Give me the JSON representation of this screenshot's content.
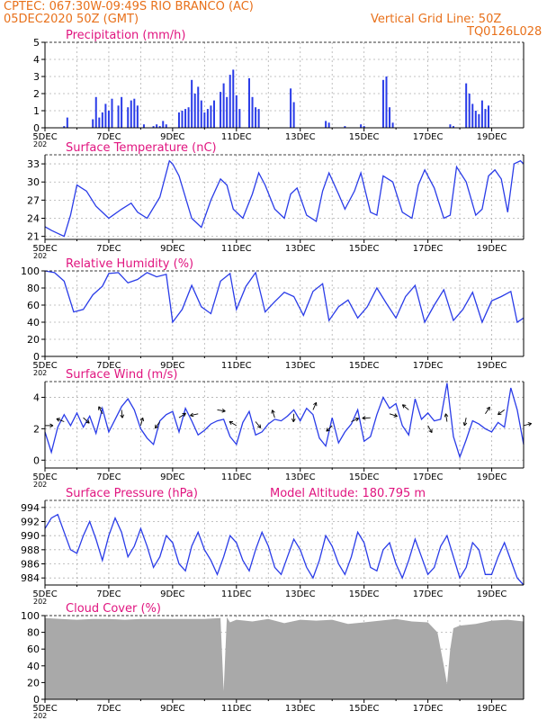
{
  "header": {
    "line1": "CPTEC:   067:30W-09:49S   RIO BRANCO (AC)",
    "line2": "05DEC2020 50Z (GMT)",
    "grid_note": "Vertical Grid Line: 50Z",
    "model_code": "TQ0126L028"
  },
  "x_axis": {
    "tick_labels": [
      "5DEC",
      "7DEC",
      "9DEC",
      "11DEC",
      "13DEC",
      "15DEC",
      "17DEC",
      "19DEC"
    ],
    "year_fragment": "202",
    "range_days": [
      5,
      20
    ]
  },
  "colors": {
    "series": "#2a3ce8",
    "title": "#e0147f",
    "header": "#e8701a",
    "cloud": "#a9a9a9",
    "grid": "#b0b0b0"
  },
  "chart_data": [
    {
      "type": "bar",
      "title": "Precipitation (mm/h)",
      "ylim": [
        0,
        5
      ],
      "yticks": [
        0,
        1,
        2,
        3,
        4,
        5
      ],
      "x": [
        5.6,
        5.7,
        6.5,
        6.6,
        6.7,
        6.8,
        6.9,
        7.0,
        7.1,
        7.3,
        7.4,
        7.6,
        7.7,
        7.8,
        7.9,
        8.1,
        8.4,
        8.5,
        8.6,
        8.7,
        8.8,
        9.2,
        9.3,
        9.4,
        9.5,
        9.6,
        9.7,
        9.8,
        9.9,
        10.0,
        10.1,
        10.2,
        10.3,
        10.5,
        10.6,
        10.7,
        10.8,
        10.9,
        11.0,
        11.1,
        11.4,
        11.5,
        11.6,
        11.7,
        12.7,
        12.8,
        13.8,
        13.9,
        14.4,
        14.9,
        15.0,
        15.6,
        15.7,
        15.8,
        15.9,
        17.7,
        17.8,
        18.2,
        18.3,
        18.4,
        18.5,
        18.6,
        18.7,
        18.8,
        18.9
      ],
      "values": [
        0.1,
        0.6,
        0.5,
        1.8,
        0.6,
        0.9,
        1.4,
        1.0,
        1.7,
        1.3,
        1.8,
        1.2,
        1.6,
        1.7,
        1.3,
        0.2,
        0.1,
        0.2,
        0.1,
        0.4,
        0.2,
        0.9,
        1.0,
        1.1,
        1.2,
        2.8,
        2.0,
        2.4,
        1.6,
        0.9,
        1.1,
        1.3,
        1.6,
        2.1,
        2.6,
        1.8,
        3.1,
        3.4,
        1.9,
        1.1,
        2.9,
        1.8,
        1.2,
        1.1,
        2.3,
        1.5,
        0.4,
        0.3,
        0.1,
        0.2,
        0.1,
        2.8,
        3.0,
        1.2,
        0.3,
        0.2,
        0.1,
        2.6,
        2.0,
        1.4,
        1.0,
        0.8,
        1.6,
        1.1,
        1.3
      ]
    },
    {
      "type": "line",
      "title": "Surface Temperature (nC)",
      "ylim": [
        20.5,
        34.5
      ],
      "yticks": [
        21,
        24,
        27,
        30,
        33
      ],
      "x": [
        5.0,
        5.2,
        5.4,
        5.6,
        5.8,
        6.0,
        6.3,
        6.6,
        7.0,
        7.4,
        7.7,
        7.9,
        8.2,
        8.6,
        8.9,
        9.0,
        9.2,
        9.6,
        9.9,
        10.2,
        10.5,
        10.7,
        10.9,
        11.2,
        11.5,
        11.7,
        11.9,
        12.2,
        12.5,
        12.7,
        12.9,
        13.2,
        13.5,
        13.7,
        13.9,
        14.2,
        14.4,
        14.7,
        14.9,
        15.2,
        15.4,
        15.6,
        15.9,
        16.2,
        16.5,
        16.7,
        16.9,
        17.2,
        17.5,
        17.7,
        17.9,
        18.2,
        18.5,
        18.7,
        18.9,
        19.1,
        19.3,
        19.5,
        19.7,
        19.9,
        20.0
      ],
      "values": [
        22.6,
        22.0,
        21.5,
        21.0,
        24.5,
        29.5,
        28.5,
        26.0,
        24.0,
        25.5,
        26.5,
        25.0,
        24.0,
        27.5,
        33.5,
        33.0,
        31.0,
        24.0,
        22.5,
        27.0,
        30.5,
        29.5,
        25.5,
        24.0,
        28.0,
        31.5,
        29.5,
        25.5,
        24.0,
        28.0,
        29.0,
        24.5,
        23.5,
        28.5,
        31.5,
        28.0,
        25.5,
        28.5,
        31.5,
        25.0,
        24.5,
        31.0,
        30.0,
        25.0,
        24.0,
        29.5,
        32.0,
        29.0,
        24.0,
        24.5,
        32.5,
        30.0,
        24.5,
        25.5,
        31.0,
        32.0,
        30.5,
        25.0,
        33.0,
        33.5,
        33.0
      ]
    },
    {
      "type": "line",
      "title": "Relative Humidity (%)",
      "ylim": [
        0,
        100
      ],
      "yticks": [
        0,
        20,
        40,
        60,
        80,
        100
      ],
      "x": [
        5.0,
        5.3,
        5.6,
        5.9,
        6.2,
        6.5,
        6.8,
        7.0,
        7.3,
        7.6,
        7.9,
        8.2,
        8.5,
        8.8,
        9.0,
        9.3,
        9.6,
        9.9,
        10.2,
        10.5,
        10.8,
        11.0,
        11.3,
        11.6,
        11.9,
        12.2,
        12.5,
        12.8,
        13.1,
        13.4,
        13.7,
        13.9,
        14.2,
        14.5,
        14.8,
        15.1,
        15.4,
        15.7,
        16.0,
        16.3,
        16.6,
        16.9,
        17.2,
        17.5,
        17.8,
        18.1,
        18.4,
        18.7,
        19.0,
        19.3,
        19.6,
        19.8,
        20.0
      ],
      "values": [
        100,
        98,
        88,
        52,
        55,
        72,
        82,
        97,
        98,
        86,
        90,
        98,
        93,
        96,
        40,
        55,
        83,
        58,
        50,
        88,
        97,
        55,
        82,
        98,
        52,
        64,
        75,
        70,
        48,
        76,
        85,
        42,
        58,
        66,
        45,
        58,
        80,
        62,
        45,
        70,
        83,
        40,
        60,
        78,
        42,
        55,
        75,
        40,
        65,
        70,
        76,
        40,
        45
      ]
    },
    {
      "type": "line",
      "title": "Surface Wind (m/s)",
      "ylim": [
        -0.5,
        5
      ],
      "yticks": [
        0,
        2,
        4
      ],
      "x": [
        5.0,
        5.2,
        5.4,
        5.6,
        5.8,
        6.0,
        6.2,
        6.4,
        6.6,
        6.8,
        7.0,
        7.2,
        7.4,
        7.6,
        7.8,
        8.0,
        8.2,
        8.4,
        8.6,
        8.8,
        9.0,
        9.2,
        9.4,
        9.6,
        9.8,
        10.0,
        10.2,
        10.4,
        10.6,
        10.8,
        11.0,
        11.2,
        11.4,
        11.6,
        11.8,
        12.0,
        12.2,
        12.4,
        12.6,
        12.8,
        13.0,
        13.2,
        13.4,
        13.6,
        13.8,
        14.0,
        14.2,
        14.4,
        14.6,
        14.8,
        15.0,
        15.2,
        15.4,
        15.6,
        15.8,
        16.0,
        16.2,
        16.4,
        16.6,
        16.8,
        17.0,
        17.2,
        17.4,
        17.6,
        17.8,
        18.0,
        18.2,
        18.4,
        18.6,
        18.8,
        19.0,
        19.2,
        19.4,
        19.6,
        19.8,
        20.0
      ],
      "values": [
        1.8,
        0.5,
        2.1,
        2.9,
        2.2,
        3.0,
        2.1,
        2.8,
        1.7,
        3.3,
        1.8,
        2.6,
        3.4,
        3.9,
        3.2,
        2.0,
        1.4,
        1.0,
        2.5,
        2.9,
        3.1,
        1.8,
        3.3,
        2.5,
        1.6,
        1.9,
        2.3,
        2.5,
        2.6,
        1.5,
        1.0,
        2.4,
        3.1,
        1.6,
        1.8,
        2.3,
        2.6,
        2.5,
        2.8,
        3.2,
        2.5,
        3.3,
        2.9,
        1.4,
        0.9,
        2.7,
        1.1,
        1.8,
        2.3,
        3.2,
        1.2,
        1.5,
        2.9,
        4.0,
        3.3,
        3.6,
        2.2,
        1.6,
        3.9,
        2.6,
        3.0,
        2.5,
        2.6,
        4.9,
        1.5,
        0.2,
        1.3,
        2.5,
        2.3,
        2.0,
        1.8,
        2.4,
        2.1,
        4.6,
        3.2,
        1.0
      ]
    },
    {
      "type": "line",
      "title": "Surface Pressure (hPa)",
      "annotation": "Model Altitude: 180.795 m",
      "ylim": [
        983,
        995
      ],
      "yticks": [
        984,
        986,
        988,
        990,
        992,
        994
      ],
      "x": [
        5.0,
        5.2,
        5.4,
        5.6,
        5.8,
        6.0,
        6.2,
        6.4,
        6.6,
        6.8,
        7.0,
        7.2,
        7.4,
        7.6,
        7.8,
        8.0,
        8.2,
        8.4,
        8.6,
        8.8,
        9.0,
        9.2,
        9.4,
        9.6,
        9.8,
        10.0,
        10.2,
        10.4,
        10.6,
        10.8,
        11.0,
        11.2,
        11.4,
        11.6,
        11.8,
        12.0,
        12.2,
        12.4,
        12.6,
        12.8,
        13.0,
        13.2,
        13.4,
        13.6,
        13.8,
        14.0,
        14.2,
        14.4,
        14.6,
        14.8,
        15.0,
        15.2,
        15.4,
        15.6,
        15.8,
        16.0,
        16.2,
        16.4,
        16.6,
        16.8,
        17.0,
        17.2,
        17.4,
        17.6,
        17.8,
        18.0,
        18.2,
        18.4,
        18.6,
        18.8,
        19.0,
        19.2,
        19.4,
        19.6,
        19.8,
        20.0
      ],
      "values": [
        991.0,
        992.5,
        993.0,
        990.5,
        988.0,
        987.5,
        990.0,
        992.0,
        989.5,
        986.5,
        990.0,
        992.5,
        990.5,
        987.0,
        988.5,
        991.0,
        988.5,
        985.5,
        987.0,
        990.0,
        989.0,
        986.0,
        985.0,
        988.5,
        990.5,
        988.0,
        986.5,
        984.5,
        987.0,
        990.0,
        989.0,
        986.5,
        985.0,
        988.0,
        990.5,
        988.5,
        985.5,
        984.5,
        987.0,
        989.5,
        988.0,
        985.5,
        984.0,
        986.5,
        990.0,
        988.5,
        986.0,
        984.5,
        987.0,
        990.5,
        989.0,
        985.5,
        985.0,
        988.0,
        989.0,
        986.0,
        984.0,
        986.5,
        989.5,
        987.0,
        984.5,
        985.5,
        988.5,
        990.0,
        987.0,
        984.0,
        985.5,
        989.0,
        988.0,
        984.5,
        984.5,
        987.0,
        989.0,
        986.5,
        984.0,
        983.0
      ]
    },
    {
      "type": "area",
      "title": "Cloud Cover (%)",
      "ylim": [
        0,
        100
      ],
      "yticks": [
        0,
        20,
        40,
        60,
        80,
        100
      ],
      "x": [
        5.0,
        5.5,
        6.0,
        6.5,
        7.0,
        7.5,
        8.0,
        8.5,
        9.0,
        9.5,
        10.0,
        10.5,
        10.6,
        10.7,
        10.8,
        11.0,
        11.5,
        12.0,
        12.5,
        13.0,
        13.5,
        14.0,
        14.5,
        15.0,
        15.5,
        16.0,
        16.5,
        17.0,
        17.3,
        17.5,
        17.6,
        17.7,
        17.8,
        18.0,
        18.5,
        19.0,
        19.5,
        20.0
      ],
      "values": [
        97,
        96,
        95,
        96,
        96,
        95,
        96,
        96,
        96,
        96,
        96,
        97,
        10,
        98,
        92,
        95,
        93,
        96,
        91,
        95,
        94,
        95,
        90,
        92,
        94,
        96,
        93,
        92,
        80,
        40,
        18,
        60,
        85,
        88,
        90,
        94,
        95,
        93
      ]
    }
  ]
}
